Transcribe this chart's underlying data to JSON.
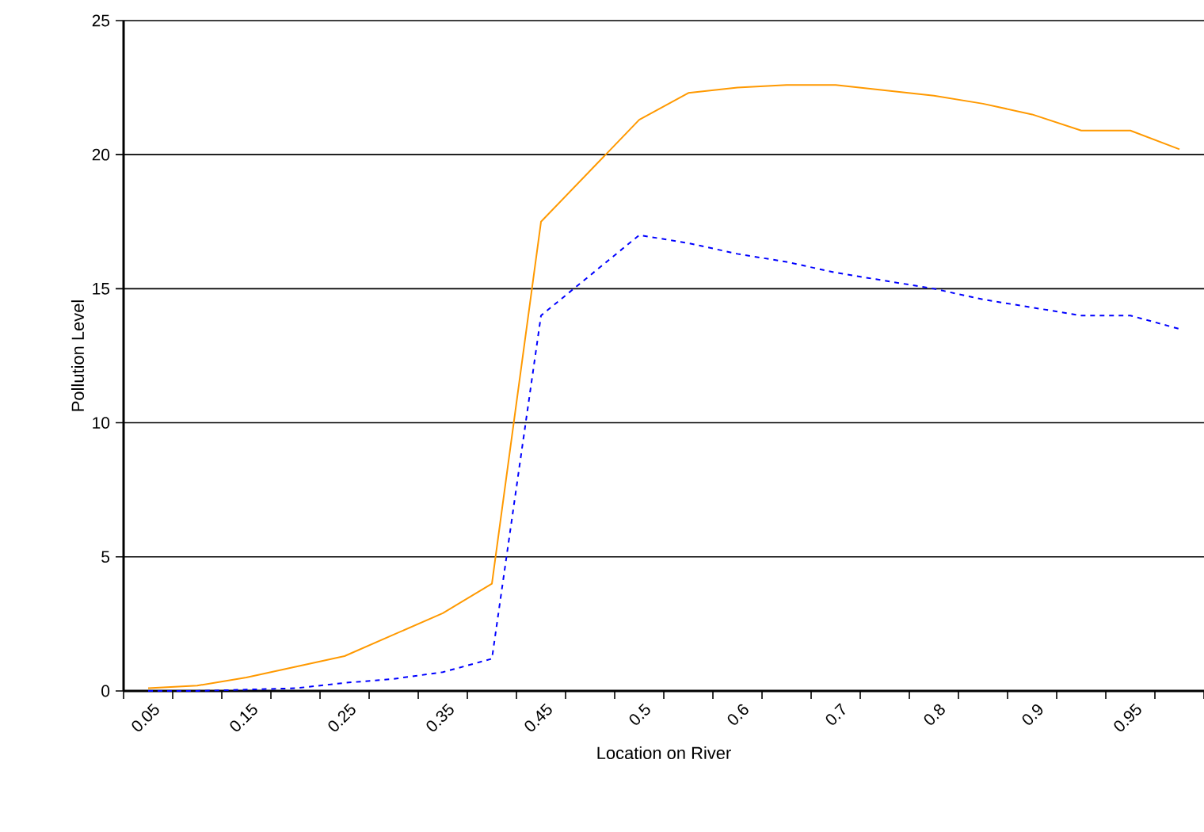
{
  "chart_data": {
    "type": "line",
    "xlabel": "Location on River",
    "ylabel": "Pollution Level",
    "categories": [
      "0.05",
      null,
      "0.15",
      null,
      "0.25",
      null,
      "0.35",
      null,
      "0.45",
      null,
      "0.5",
      null,
      "0.6",
      null,
      "0.7",
      null,
      "0.8",
      null,
      "0.9",
      null,
      "0.95",
      null
    ],
    "series": [
      {
        "color": "#ff9900",
        "line_style": "solid",
        "values": [
          0.1,
          0.2,
          0.5,
          0.9,
          1.3,
          2.1,
          2.9,
          4.0,
          17.5,
          19.4,
          21.3,
          22.3,
          22.5,
          22.6,
          22.6,
          22.4,
          22.2,
          21.9,
          21.5,
          20.9,
          20.9,
          20.2
        ]
      },
      {
        "color": "#0000ff",
        "line_style": "dashed",
        "values": [
          0,
          0,
          0.05,
          0.1,
          0.3,
          0.45,
          0.7,
          1.2,
          14.0,
          15.5,
          17.0,
          16.7,
          16.3,
          16.0,
          15.6,
          15.3,
          15.0,
          14.6,
          14.3,
          14.0,
          14.0,
          13.5
        ]
      }
    ],
    "ylim": [
      0,
      25
    ],
    "yticks": [
      0,
      5,
      10,
      15,
      20,
      25
    ],
    "grid": "y",
    "marker": "none"
  }
}
